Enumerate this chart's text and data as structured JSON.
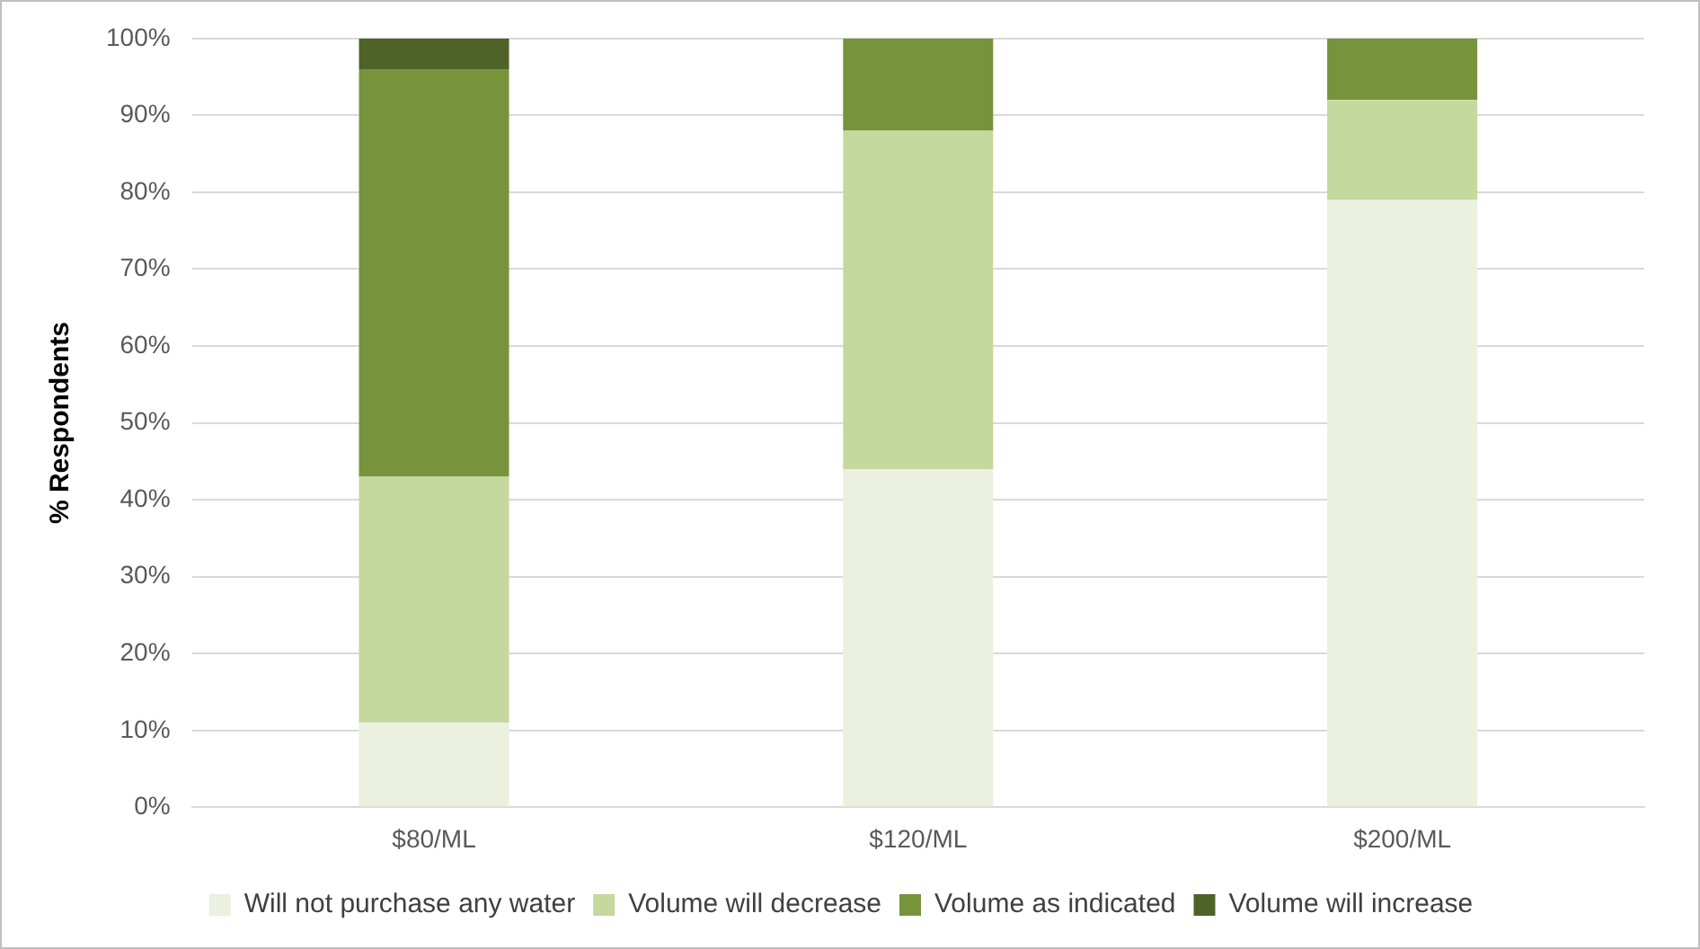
{
  "chart_data": {
    "type": "bar",
    "stacked": true,
    "ylabel": "% Respondents",
    "categories": [
      "$80/ML",
      "$120/ML",
      "$200/ML"
    ],
    "series": [
      {
        "name": "Will not purchase any water",
        "color": "#ebf0df",
        "values": [
          11,
          44,
          79
        ]
      },
      {
        "name": "Volume will decrease",
        "color": "#c5d89e",
        "values": [
          32,
          44,
          13
        ]
      },
      {
        "name": "Volume as indicated",
        "color": "#77933c",
        "values": [
          53,
          12,
          8
        ]
      },
      {
        "name": "Volume will increase",
        "color": "#4f6228",
        "values": [
          4,
          0,
          0
        ]
      }
    ],
    "ylim": [
      0,
      100
    ],
    "yticks": [
      {
        "value": 0,
        "label": "0%"
      },
      {
        "value": 10,
        "label": "10%"
      },
      {
        "value": 20,
        "label": "20%"
      },
      {
        "value": 30,
        "label": "30%"
      },
      {
        "value": 40,
        "label": "40%"
      },
      {
        "value": 50,
        "label": "50%"
      },
      {
        "value": 60,
        "label": "60%"
      },
      {
        "value": 70,
        "label": "70%"
      },
      {
        "value": 80,
        "label": "80%"
      },
      {
        "value": 90,
        "label": "90%"
      },
      {
        "value": 100,
        "label": "100%"
      }
    ],
    "grid": "y",
    "legend": "bottom"
  }
}
